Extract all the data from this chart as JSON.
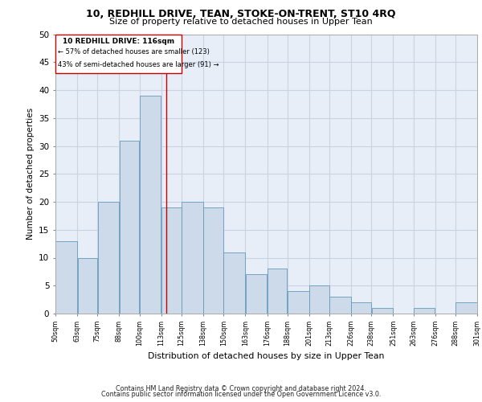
{
  "title": "10, REDHILL DRIVE, TEAN, STOKE-ON-TRENT, ST10 4RQ",
  "subtitle": "Size of property relative to detached houses in Upper Tean",
  "xlabel": "Distribution of detached houses by size in Upper Tean",
  "ylabel": "Number of detached properties",
  "bar_color": "#ccdaea",
  "bar_edge_color": "#6699bb",
  "grid_color": "#c8d4e4",
  "background_color": "#e8eef8",
  "annotation_box_color": "#ffffff",
  "annotation_box_edge": "#cc0000",
  "vline_color": "#cc0000",
  "vline_x": 116,
  "annotation_line1": "10 REDHILL DRIVE: 116sqm",
  "annotation_line2": "← 57% of detached houses are smaller (123)",
  "annotation_line3": "43% of semi-detached houses are larger (91) →",
  "footer1": "Contains HM Land Registry data © Crown copyright and database right 2024.",
  "footer2": "Contains public sector information licensed under the Open Government Licence v3.0.",
  "bin_edges": [
    50,
    63,
    75,
    88,
    100,
    113,
    125,
    138,
    150,
    163,
    176,
    188,
    201,
    213,
    226,
    238,
    251,
    263,
    276,
    288,
    301
  ],
  "bin_labels": [
    "50sqm",
    "63sqm",
    "75sqm",
    "88sqm",
    "100sqm",
    "113sqm",
    "125sqm",
    "138sqm",
    "150sqm",
    "163sqm",
    "176sqm",
    "188sqm",
    "201sqm",
    "213sqm",
    "226sqm",
    "238sqm",
    "251sqm",
    "263sqm",
    "276sqm",
    "288sqm",
    "301sqm"
  ],
  "bar_heights": [
    13,
    10,
    20,
    31,
    39,
    19,
    20,
    19,
    11,
    7,
    8,
    4,
    5,
    3,
    2,
    1,
    0,
    1,
    0,
    2
  ],
  "ylim": [
    0,
    50
  ],
  "yticks": [
    0,
    5,
    10,
    15,
    20,
    25,
    30,
    35,
    40,
    45,
    50
  ]
}
